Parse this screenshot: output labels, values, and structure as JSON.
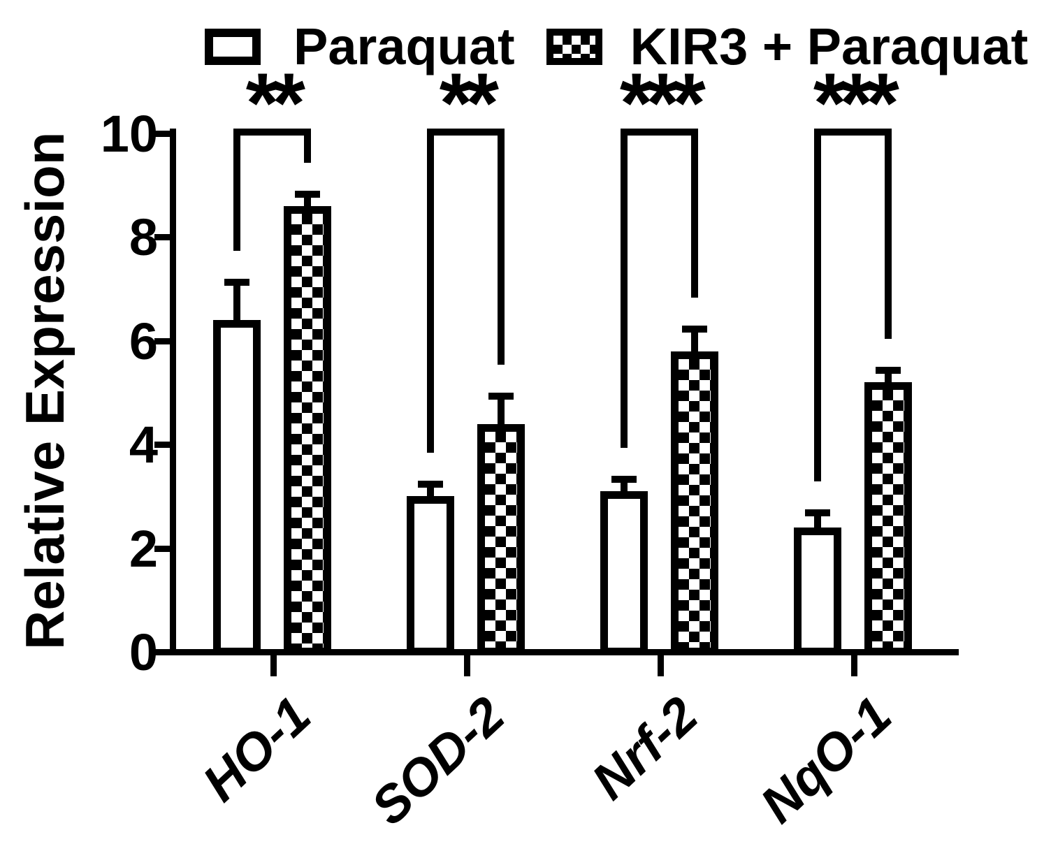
{
  "figure": {
    "background": "#ffffff",
    "foreground": "#000000"
  },
  "chart_data": {
    "type": "bar",
    "title": "",
    "ylabel": "Relative Expression",
    "xlabel": "",
    "ylim": [
      0,
      10
    ],
    "yticks": [
      0,
      2,
      4,
      6,
      8,
      10
    ],
    "categories": [
      "HO-1",
      "SOD-2",
      "Nrf-2",
      "NqO-1"
    ],
    "series": [
      {
        "name": "Paraquat",
        "fill": "open",
        "values": [
          6.4,
          3.0,
          3.1,
          2.4
        ],
        "errors": [
          0.8,
          0.3,
          0.3,
          0.35
        ]
      },
      {
        "name": "KIR3 + Paraquat",
        "fill": "checker",
        "values": [
          8.6,
          4.4,
          5.8,
          5.2
        ],
        "errors": [
          0.3,
          0.6,
          0.5,
          0.3
        ]
      }
    ],
    "significance": [
      {
        "category": "HO-1",
        "label": "**"
      },
      {
        "category": "SOD-2",
        "label": "**"
      },
      {
        "category": "Nrf-2",
        "label": "***"
      },
      {
        "category": "NqO-1",
        "label": "***"
      }
    ],
    "legend_position": "top",
    "grid": false
  }
}
